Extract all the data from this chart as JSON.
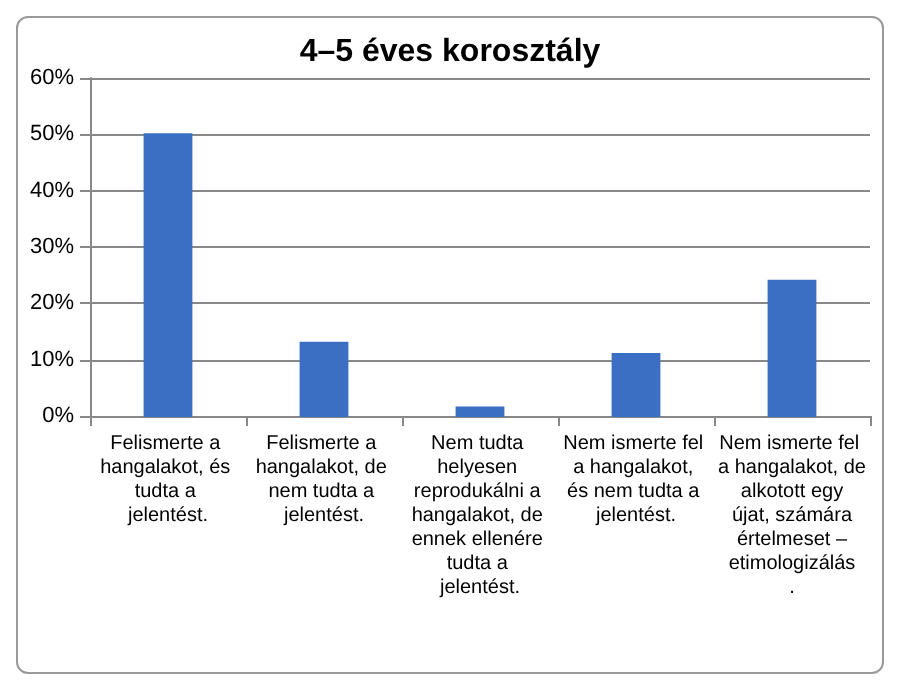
{
  "chart_data": {
    "type": "bar",
    "title": "4–5 éves korosztály",
    "categories": [
      "Felismerte a hangalakot, és tudta a jelentést.",
      "Felismerte a hangalakot, de nem tudta a jelentést.",
      "Nem tudta helyesen reprodukálni a hangalakot, de ennek ellenére tudta a jelentést.",
      "Nem ismerte fel a hangalakot, és nem tudta a jelentést.",
      "Nem ismerte fel a hangalakot, de alkotott egy újat, számára értelmeset – etimologizálás."
    ],
    "values": [
      50,
      13,
      1.5,
      11,
      24
    ],
    "color": "#3a6fc4",
    "ylim": [
      0,
      60
    ],
    "yticks": [
      {
        "value": 0,
        "label": "0%"
      },
      {
        "value": 10,
        "label": "10%"
      },
      {
        "value": 20,
        "label": "20%"
      },
      {
        "value": 30,
        "label": "30%"
      },
      {
        "value": 40,
        "label": "40%"
      },
      {
        "value": 50,
        "label": "50%"
      },
      {
        "value": 60,
        "label": "60%"
      }
    ],
    "grid": "y"
  }
}
